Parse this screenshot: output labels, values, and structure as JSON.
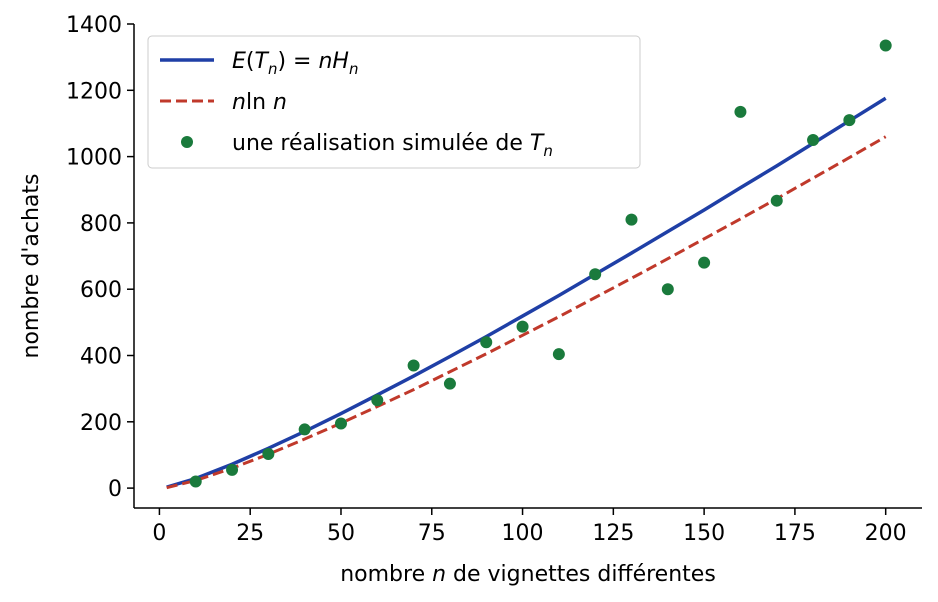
{
  "chart_data": {
    "type": "line",
    "title": "",
    "xlabel": "nombre n de vignettes différentes",
    "ylabel": "nombre d'achats",
    "xlim": [
      -7,
      210
    ],
    "ylim": [
      -60,
      1400
    ],
    "xticks": [
      0,
      25,
      50,
      75,
      100,
      125,
      150,
      175,
      200
    ],
    "yticks": [
      0,
      200,
      400,
      600,
      800,
      1000,
      1200,
      1400
    ],
    "grid": false,
    "legend": "top-left",
    "series": [
      {
        "name": "E(Tn) = nHn",
        "style": "solid",
        "color": "#1f3fa6",
        "x": [
          2,
          10,
          20,
          30,
          40,
          50,
          60,
          70,
          80,
          90,
          100,
          110,
          120,
          130,
          140,
          150,
          160,
          170,
          180,
          190,
          200
        ],
        "y": [
          3,
          29,
          72,
          120,
          171,
          225,
          281,
          338,
          397,
          457,
          519,
          581,
          645,
          709,
          774,
          839,
          906,
          972,
          1040,
          1108,
          1176
        ]
      },
      {
        "name": "n ln n",
        "style": "dashed",
        "color": "#c0392b",
        "x": [
          2,
          10,
          20,
          30,
          40,
          50,
          60,
          70,
          80,
          90,
          100,
          110,
          120,
          130,
          140,
          150,
          160,
          170,
          180,
          190,
          200
        ],
        "y": [
          1.4,
          23,
          60,
          102,
          148,
          196,
          246,
          297,
          351,
          405,
          461,
          517,
          575,
          633,
          692,
          752,
          812,
          873,
          935,
          997,
          1060
        ]
      },
      {
        "name": "une réalisation simulée de Tn",
        "style": "points",
        "color": "#1a7a3c",
        "x": [
          10,
          20,
          30,
          40,
          50,
          60,
          70,
          80,
          90,
          100,
          110,
          120,
          130,
          140,
          150,
          160,
          170,
          180,
          190,
          200
        ],
        "y": [
          20,
          55,
          103,
          177,
          195,
          265,
          370,
          315,
          440,
          487,
          404,
          645,
          810,
          600,
          680,
          1135,
          867,
          1050,
          1110,
          1335
        ]
      }
    ]
  }
}
